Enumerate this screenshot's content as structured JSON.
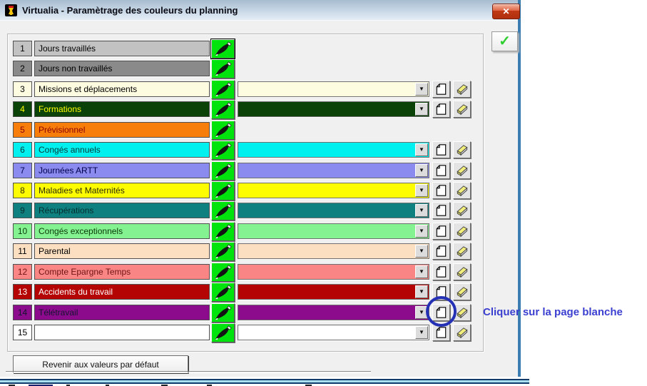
{
  "window": {
    "title": "Virtualia - Paramètrage des couleurs du planning"
  },
  "icons": {
    "close": "✕",
    "check": "✓",
    "dropdown_arrow": "▼",
    "app_icon": "virtualia-goblet",
    "brush": "paint-brush",
    "page": "blank-page",
    "eraser": "eraser"
  },
  "rows": [
    {
      "num": "1",
      "label": "Jours travaillés",
      "color": "#c2c2c2",
      "text_color": "#000000",
      "has_dropdown": false,
      "focused": true
    },
    {
      "num": "2",
      "label": "Jours non travaillés",
      "color": "#8a8a8a",
      "text_color": "#000000",
      "has_dropdown": false,
      "focused": false
    },
    {
      "num": "3",
      "label": "Missions et déplacements",
      "color": "#fdfbe0",
      "text_color": "#000000",
      "has_dropdown": true,
      "focused": false
    },
    {
      "num": "4",
      "label": "Formations",
      "color": "#0b4207",
      "text_color": "#ffff00",
      "has_dropdown": true,
      "focused": false
    },
    {
      "num": "5",
      "label": "Prévisionnel",
      "color": "#f87e0c",
      "text_color": "#8b0000",
      "has_dropdown": false,
      "focused": false
    },
    {
      "num": "6",
      "label": "Congés annuels",
      "color": "#00efef",
      "text_color": "#013b3b",
      "has_dropdown": true,
      "focused": false
    },
    {
      "num": "7",
      "label": "Journées ARTT",
      "color": "#8a8aef",
      "text_color": "#00004a",
      "has_dropdown": true,
      "focused": false
    },
    {
      "num": "8",
      "label": "Maladies et Maternités",
      "color": "#fdfd00",
      "text_color": "#2e2e00",
      "has_dropdown": true,
      "focused": false
    },
    {
      "num": "9",
      "label": "Récupérations",
      "color": "#0f8080",
      "text_color": "#002e2e",
      "has_dropdown": true,
      "focused": false
    },
    {
      "num": "10",
      "label": "Congés exceptionnels",
      "color": "#84f290",
      "text_color": "#0a3a0a",
      "has_dropdown": true,
      "focused": false
    },
    {
      "num": "11",
      "label": "Parental",
      "color": "#fbdfc0",
      "text_color": "#000000",
      "has_dropdown": true,
      "focused": false
    },
    {
      "num": "12",
      "label": "Compte Epargne Temps",
      "color": "#f98585",
      "text_color": "#701414",
      "has_dropdown": true,
      "focused": false
    },
    {
      "num": "13",
      "label": "Accidents du travail",
      "color": "#b40403",
      "text_color": "#ffffff",
      "has_dropdown": true,
      "focused": false
    },
    {
      "num": "14",
      "label": "Télétravail",
      "color": "#8c0b8c",
      "text_color": "#14142e",
      "has_dropdown": true,
      "focused": false
    },
    {
      "num": "15",
      "label": "",
      "color": "#ffffff",
      "text_color": "#000000",
      "has_dropdown": true,
      "focused": false
    }
  ],
  "footer": {
    "reset_label": "Revenir aux valeurs par défaut"
  },
  "annotation": {
    "text": "Cliquer sur la page blanche",
    "color": "#3b3fcf",
    "circled_row": "14",
    "circle_color": "#2531b5"
  }
}
